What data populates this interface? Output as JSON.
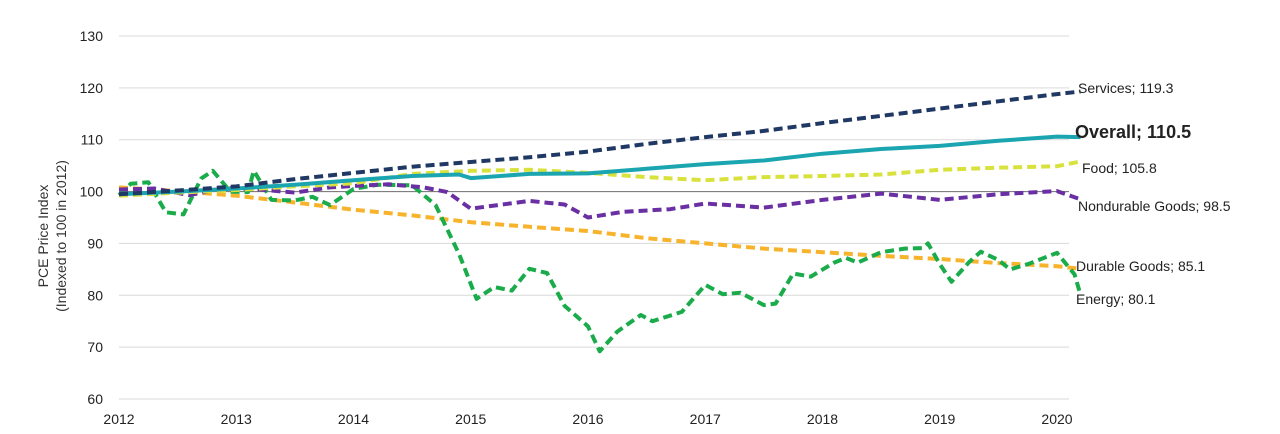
{
  "chart_data": {
    "type": "line",
    "title": "",
    "ylabel": [
      "PCE Price Index",
      "(Indexed to 100 in 2012)"
    ],
    "xlabel": "",
    "ylim": [
      60,
      130
    ],
    "xlim": [
      2012,
      2020.2
    ],
    "yticks": [
      60,
      70,
      80,
      90,
      100,
      110,
      120,
      130
    ],
    "xticks": [
      2012,
      2013,
      2014,
      2015,
      2016,
      2017,
      2018,
      2019,
      2020
    ],
    "baseline": 100,
    "grid": true,
    "series": [
      {
        "key": "services",
        "end_label": "Services; 119.3",
        "color": "#1f3864",
        "dashed": true,
        "points": [
          [
            2012,
            99.5
          ],
          [
            2012.5,
            100.2
          ],
          [
            2013,
            101.0
          ],
          [
            2013.5,
            102.4
          ],
          [
            2014,
            103.6
          ],
          [
            2014.5,
            104.8
          ],
          [
            2015,
            105.7
          ],
          [
            2015.5,
            106.6
          ],
          [
            2016,
            107.7
          ],
          [
            2016.5,
            109.2
          ],
          [
            2017,
            110.5
          ],
          [
            2017.5,
            111.7
          ],
          [
            2018,
            113.2
          ],
          [
            2018.5,
            114.6
          ],
          [
            2019,
            116.0
          ],
          [
            2019.5,
            117.4
          ],
          [
            2020,
            118.8
          ],
          [
            2020.2,
            119.3
          ]
        ]
      },
      {
        "key": "overall",
        "end_label": "Overall; 110.5",
        "color": "#1ba5b0",
        "dashed": false,
        "bold_label": true,
        "points": [
          [
            2012,
            99.5
          ],
          [
            2012.5,
            100.0
          ],
          [
            2013,
            100.6
          ],
          [
            2013.5,
            101.3
          ],
          [
            2014,
            102.2
          ],
          [
            2014.5,
            103.0
          ],
          [
            2014.9,
            103.3
          ],
          [
            2015,
            102.6
          ],
          [
            2015.5,
            103.4
          ],
          [
            2016,
            103.5
          ],
          [
            2016.5,
            104.4
          ],
          [
            2017,
            105.3
          ],
          [
            2017.5,
            106.0
          ],
          [
            2018,
            107.3
          ],
          [
            2018.5,
            108.2
          ],
          [
            2019,
            108.8
          ],
          [
            2019.5,
            109.8
          ],
          [
            2020,
            110.6
          ],
          [
            2020.2,
            110.5
          ]
        ]
      },
      {
        "key": "food",
        "end_label": "Food; 105.8",
        "color": "#d9e23c",
        "dashed": true,
        "points": [
          [
            2012,
            99.2
          ],
          [
            2012.5,
            99.8
          ],
          [
            2013,
            100.3
          ],
          [
            2013.5,
            101.0
          ],
          [
            2014,
            101.6
          ],
          [
            2014.5,
            103.4
          ],
          [
            2015,
            104.0
          ],
          [
            2015.5,
            104.2
          ],
          [
            2016,
            103.6
          ],
          [
            2016.5,
            102.8
          ],
          [
            2017,
            102.2
          ],
          [
            2017.5,
            102.8
          ],
          [
            2018,
            103.0
          ],
          [
            2018.5,
            103.3
          ],
          [
            2019,
            104.2
          ],
          [
            2019.5,
            104.6
          ],
          [
            2020,
            104.9
          ],
          [
            2020.2,
            105.8
          ]
        ]
      },
      {
        "key": "nondurable",
        "end_label": "Nondurable Goods; 98.5",
        "color": "#6a2fa3",
        "dashed": true,
        "points": [
          [
            2012,
            100.4
          ],
          [
            2012.3,
            100.6
          ],
          [
            2012.6,
            99.3
          ],
          [
            2012.9,
            100.7
          ],
          [
            2013.2,
            100.4
          ],
          [
            2013.5,
            99.8
          ],
          [
            2013.8,
            100.8
          ],
          [
            2014,
            101.1
          ],
          [
            2014.3,
            101.4
          ],
          [
            2014.6,
            100.8
          ],
          [
            2014.8,
            99.9
          ],
          [
            2015,
            96.7
          ],
          [
            2015.5,
            98.2
          ],
          [
            2015.8,
            97.5
          ],
          [
            2016,
            95.0
          ],
          [
            2016.3,
            96.1
          ],
          [
            2016.7,
            96.6
          ],
          [
            2017,
            97.7
          ],
          [
            2017.5,
            96.9
          ],
          [
            2018,
            98.4
          ],
          [
            2018.5,
            99.6
          ],
          [
            2019,
            98.4
          ],
          [
            2019.5,
            99.5
          ],
          [
            2020,
            100.1
          ],
          [
            2020.2,
            98.5
          ]
        ]
      },
      {
        "key": "durable",
        "end_label": "Durable Goods; 85.1",
        "color": "#f7b32b",
        "dashed": true,
        "points": [
          [
            2012,
            100.8
          ],
          [
            2012.5,
            100.1
          ],
          [
            2013,
            99.2
          ],
          [
            2013.5,
            97.9
          ],
          [
            2014,
            96.5
          ],
          [
            2014.5,
            95.4
          ],
          [
            2015,
            94.1
          ],
          [
            2015.5,
            93.2
          ],
          [
            2016,
            92.4
          ],
          [
            2016.5,
            91.0
          ],
          [
            2017,
            90.0
          ],
          [
            2017.5,
            89.0
          ],
          [
            2018,
            88.3
          ],
          [
            2018.5,
            87.6
          ],
          [
            2019,
            87.0
          ],
          [
            2019.5,
            86.2
          ],
          [
            2020,
            85.6
          ],
          [
            2020.2,
            85.1
          ]
        ]
      },
      {
        "key": "energy",
        "end_label": "Energy; 80.1",
        "color": "#1aab4b",
        "dashed": true,
        "points": [
          [
            2012,
            99.3
          ],
          [
            2012.1,
            101.5
          ],
          [
            2012.25,
            101.8
          ],
          [
            2012.4,
            96.0
          ],
          [
            2012.55,
            95.6
          ],
          [
            2012.7,
            102.5
          ],
          [
            2012.8,
            104.0
          ],
          [
            2012.95,
            100.0
          ],
          [
            2013.1,
            99.9
          ],
          [
            2013.15,
            104.0
          ],
          [
            2013.3,
            98.4
          ],
          [
            2013.5,
            98.3
          ],
          [
            2013.65,
            99.0
          ],
          [
            2013.8,
            97.4
          ],
          [
            2014,
            100.5
          ],
          [
            2014.2,
            101.3
          ],
          [
            2014.5,
            101.2
          ],
          [
            2014.7,
            97.4
          ],
          [
            2014.9,
            88.0
          ],
          [
            2015.05,
            79.3
          ],
          [
            2015.2,
            81.6
          ],
          [
            2015.35,
            80.9
          ],
          [
            2015.5,
            85.1
          ],
          [
            2015.65,
            84.3
          ],
          [
            2015.8,
            78.0
          ],
          [
            2016,
            74.0
          ],
          [
            2016.1,
            69.2
          ],
          [
            2016.25,
            73.0
          ],
          [
            2016.45,
            76.2
          ],
          [
            2016.55,
            75.0
          ],
          [
            2016.8,
            76.8
          ],
          [
            2017,
            82.0
          ],
          [
            2017.15,
            80.2
          ],
          [
            2017.3,
            80.5
          ],
          [
            2017.5,
            78.1
          ],
          [
            2017.6,
            78.4
          ],
          [
            2017.75,
            84.2
          ],
          [
            2017.9,
            83.6
          ],
          [
            2018.1,
            86.3
          ],
          [
            2018.2,
            87.2
          ],
          [
            2018.3,
            86.3
          ],
          [
            2018.5,
            88.3
          ],
          [
            2018.7,
            89.0
          ],
          [
            2018.85,
            89.1
          ],
          [
            2018.9,
            90.0
          ],
          [
            2019,
            86.0
          ],
          [
            2019.1,
            82.6
          ],
          [
            2019.25,
            86.4
          ],
          [
            2019.35,
            88.4
          ],
          [
            2019.5,
            86.8
          ],
          [
            2019.6,
            85.0
          ],
          [
            2019.75,
            86.0
          ],
          [
            2019.9,
            87.3
          ],
          [
            2020,
            88.2
          ],
          [
            2020.15,
            84.0
          ],
          [
            2020.2,
            80.1
          ]
        ]
      }
    ]
  }
}
